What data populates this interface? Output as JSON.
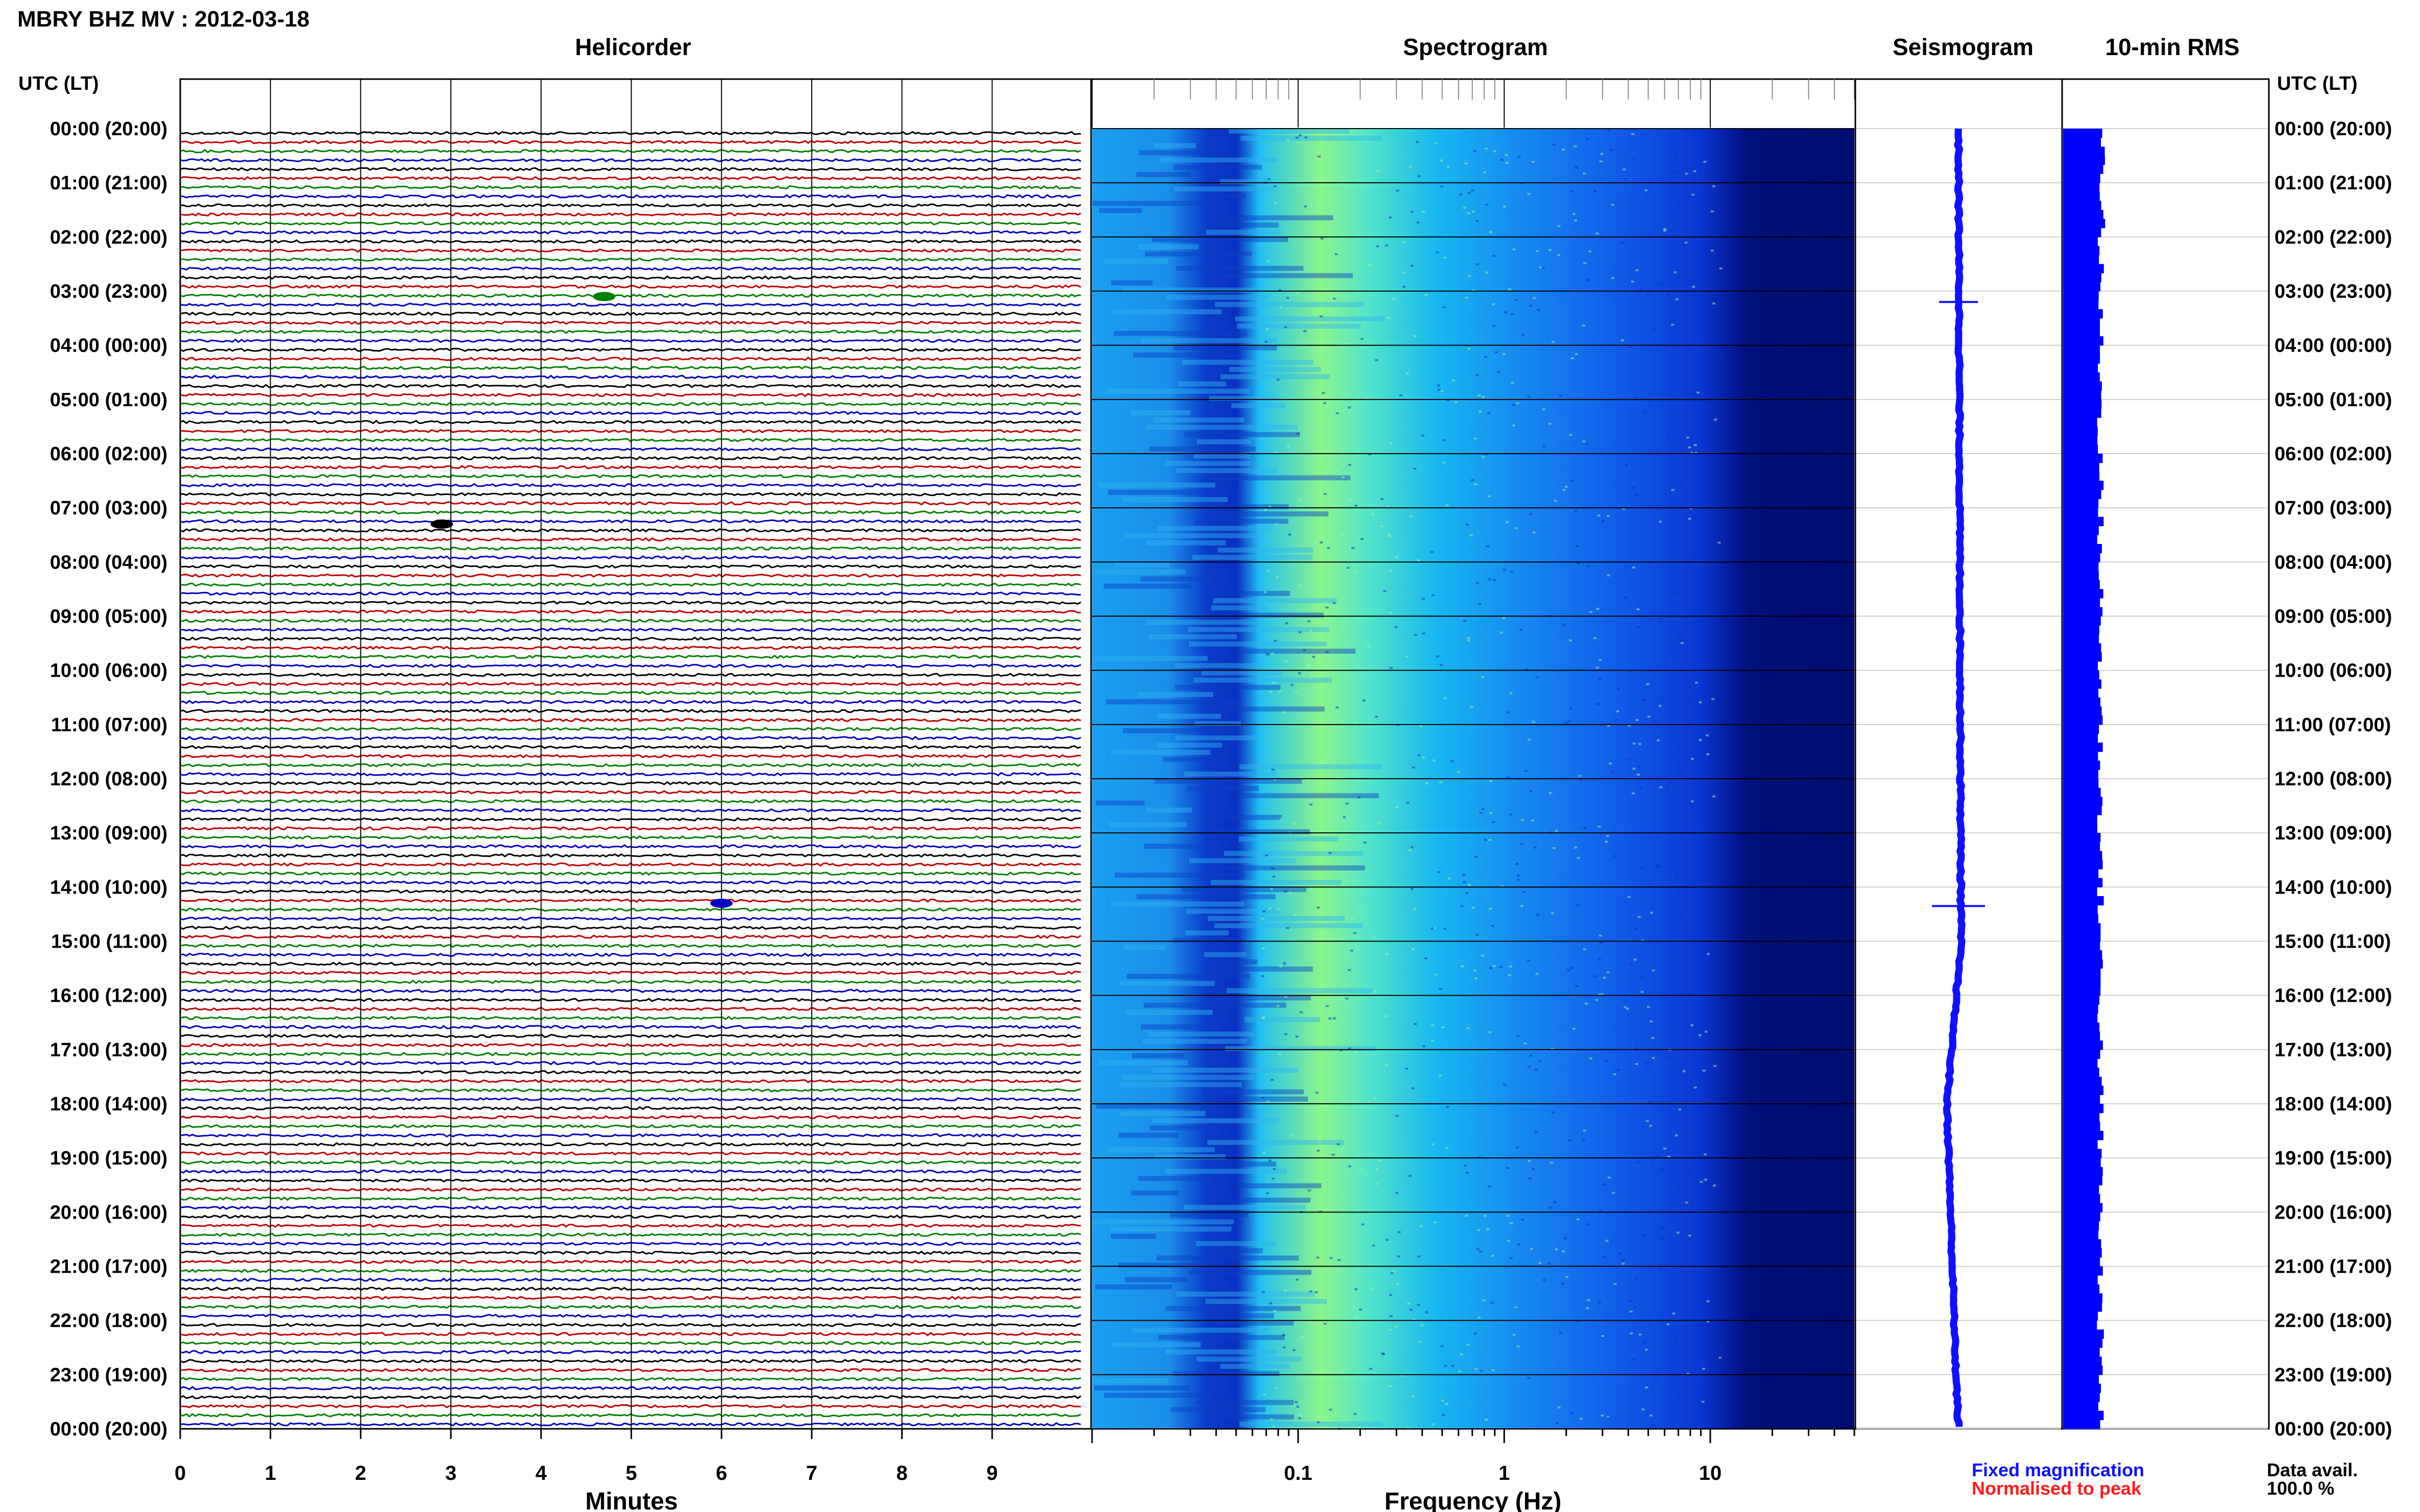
{
  "title": "MBRY BHZ MV : 2012-03-18",
  "panels": {
    "helicorder": "Helicorder",
    "spectrogram": "Spectrogram",
    "seismogram": "Seismogram",
    "rms": "10-min RMS"
  },
  "axis": {
    "time_header_left": "UTC (LT)",
    "time_header_right": "UTC (LT)",
    "minutes_label": "Minutes",
    "frequency_label": "Frequency (Hz)"
  },
  "legend": {
    "fixed": "Fixed magnification",
    "normalised": "Normalised to peak",
    "fixed_color": "#1010ff",
    "normalised_color": "#ff1a1a"
  },
  "data_avail": {
    "label": "Data avail.",
    "value": "100.0 %"
  },
  "colors": {
    "trace_cycle": [
      "#000000",
      "#c00000",
      "#008000",
      "#0000c0"
    ],
    "spectrogram_low": "#00007a",
    "spectrogram_mid": "#1e90ff",
    "spectrogram_high": "#7fff7f",
    "rms_fill": "#0000ff"
  },
  "chart_data": [
    {
      "type": "line",
      "name": "helicorder",
      "title": "Helicorder",
      "xlabel": "Minutes",
      "xlim": [
        0,
        10
      ],
      "x_ticks": [
        "0",
        "1",
        "2",
        "3",
        "4",
        "5",
        "6",
        "7",
        "8",
        "9"
      ],
      "time_labels": [
        "00:00 (20:00)",
        "01:00 (21:00)",
        "02:00 (22:00)",
        "03:00 (23:00)",
        "04:00 (00:00)",
        "05:00 (01:00)",
        "06:00 (02:00)",
        "07:00 (03:00)",
        "08:00 (04:00)",
        "09:00 (05:00)",
        "10:00 (06:00)",
        "11:00 (07:00)",
        "12:00 (08:00)",
        "13:00 (09:00)",
        "14:00 (10:00)",
        "15:00 (11:00)",
        "16:00 (12:00)",
        "17:00 (13:00)",
        "18:00 (14:00)",
        "19:00 (15:00)",
        "20:00 (16:00)",
        "21:00 (17:00)",
        "22:00 (18:00)",
        "23:00 (19:00)",
        "00:00 (20:00)"
      ],
      "rows_per_hour": 6,
      "total_rows": 144,
      "events": [
        {
          "hour": 3.1,
          "minute": 4.7,
          "color": "#008000"
        },
        {
          "hour": 7.3,
          "minute": 2.9,
          "color": "#000000"
        },
        {
          "hour": 14.3,
          "minute": 6.0,
          "color": "#0000c0"
        }
      ]
    },
    {
      "type": "heatmap",
      "name": "spectrogram",
      "title": "Spectrogram",
      "xlabel": "Frequency (Hz)",
      "x_scale": "log",
      "xlim": [
        0.01,
        50
      ],
      "x_tick_labels": [
        "0.1",
        "1",
        "10"
      ],
      "x_tick_values": [
        0.1,
        1,
        10
      ],
      "peak_band_hz": [
        0.2,
        0.35
      ],
      "low_energy_above_hz": 20
    },
    {
      "type": "line",
      "name": "seismogram",
      "title": "Seismogram",
      "description_values": {
        "offset_at_hour": [
          [
            0,
            0.0
          ],
          [
            15,
            0.1
          ],
          [
            18,
            -0.45
          ],
          [
            23,
            -0.1
          ],
          [
            24,
            0.0
          ]
        ]
      }
    },
    {
      "type": "bar",
      "name": "rms",
      "title": "10-min RMS",
      "orientation": "horizontal",
      "bins": 144,
      "ylim_hours": [
        0,
        24
      ]
    }
  ]
}
